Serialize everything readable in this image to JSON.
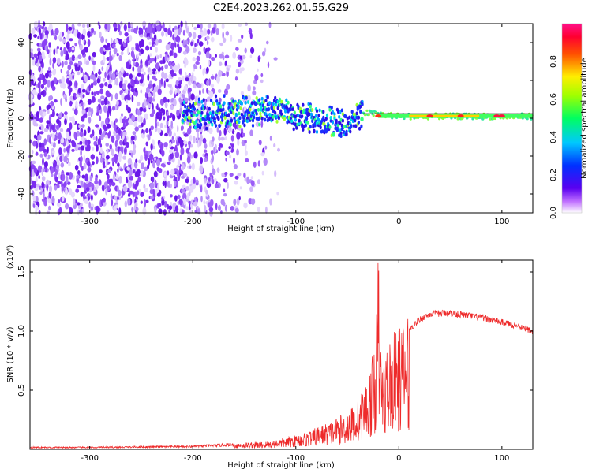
{
  "title": "C2E4.2023.262.01.55.G29",
  "chart_data": [
    {
      "type": "heatmap",
      "xlabel": "Height of straight line (km)",
      "ylabel": "Frequency (Hz)",
      "xlim": [
        -358,
        130
      ],
      "ylim": [
        -50,
        50
      ],
      "xticks": [
        -300,
        -200,
        -100,
        0,
        100
      ],
      "yticks": [
        -40,
        -20,
        0,
        20,
        40
      ],
      "colorbar": {
        "label": "Normalized spectral amplitude",
        "range": [
          0.0,
          1.0
        ],
        "ticks": [
          0.0,
          0.2,
          0.4,
          0.6,
          0.8
        ],
        "colormap": "rainbow (white-purple-blue-cyan-green-yellow-red-magenta)"
      },
      "features": {
        "noise_region_km": [
          -358,
          -140
        ],
        "signal_onset_km": -210,
        "signal_center_freq_hz": [
          [
            -210,
            2
          ],
          [
            -130,
            5
          ],
          [
            -100,
            2
          ],
          [
            -80,
            0
          ],
          [
            -50,
            -4
          ],
          [
            -35,
            3
          ],
          [
            0,
            1
          ],
          [
            130,
            1
          ]
        ],
        "signal_peak_amplitude": 0.95
      },
      "grid": false
    },
    {
      "type": "line",
      "xlabel": "Height of straight line (km)",
      "ylabel": "SNR (10 * v/v)",
      "y_multiplier": "(x10⁴)",
      "xlim": [
        -358,
        130
      ],
      "ylim": [
        0,
        1.6
      ],
      "xticks": [
        -300,
        -200,
        -100,
        0,
        100
      ],
      "yticks": [
        0.5,
        1.0,
        1.5
      ],
      "series": [
        {
          "color": "#ee2a2a",
          "envelope_x": [
            -358,
            -300,
            -200,
            -160,
            -130,
            -110,
            -95,
            -80,
            -65,
            -50,
            -40,
            -30,
            -25,
            -22,
            -20,
            -18,
            -15,
            -10,
            -5,
            0,
            10,
            20,
            30,
            50,
            80,
            100,
            120,
            130
          ],
          "envelope_y": [
            0.02,
            0.02,
            0.03,
            0.05,
            0.06,
            0.09,
            0.12,
            0.17,
            0.22,
            0.3,
            0.38,
            0.55,
            0.75,
            0.95,
            1.6,
            0.9,
            0.7,
            0.85,
            0.9,
            0.95,
            1.02,
            1.1,
            1.15,
            1.16,
            1.12,
            1.08,
            1.04,
            1.0
          ]
        }
      ],
      "grid": false
    }
  ]
}
